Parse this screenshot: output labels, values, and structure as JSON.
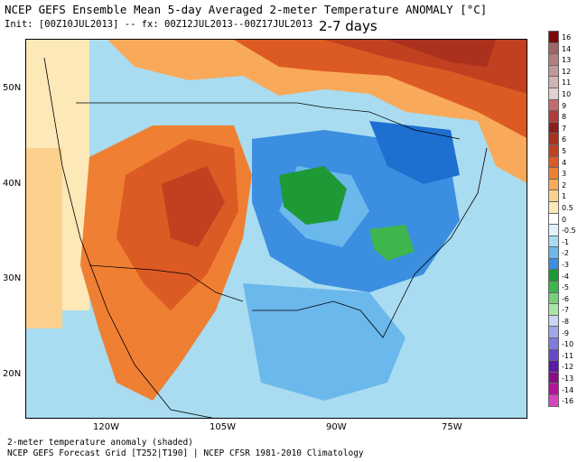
{
  "header": {
    "title": "NCEP GEFS Ensemble Mean 5-day Averaged 2-meter Temperature ANOMALY [°C]",
    "init": "Init: [00Z10JUL2013] -- fx: 00Z12JUL2013--00Z17JUL2013",
    "period": "2-7 days"
  },
  "axes": {
    "lat_labels": [
      "50N",
      "40N",
      "30N",
      "20N"
    ],
    "lon_labels": [
      "120W",
      "105W",
      "90W",
      "75W"
    ]
  },
  "footer": {
    "line1": "2-meter temperature anomaly (shaded)",
    "line2": "NCEP GEFS Forecast Grid [T252|T190] | NCEP CFSR 1981-2010 Climatology"
  },
  "colorbar": {
    "labels": [
      "16",
      "14",
      "13",
      "12",
      "11",
      "10",
      "9",
      "8",
      "7",
      "6",
      "5",
      "4",
      "3",
      "2",
      "1",
      "0.5",
      "0",
      "-0.5",
      "-1",
      "-2",
      "-3",
      "-4",
      "-5",
      "-6",
      "-7",
      "-8",
      "-9",
      "-10",
      "-11",
      "-12",
      "-13",
      "-14",
      "-16"
    ],
    "colors": [
      "#7a0a0a",
      "#a06565",
      "#b07f7f",
      "#c09a9a",
      "#d1b4b4",
      "#e2cfcf",
      "#c56a6a",
      "#b23a3a",
      "#8e1d1d",
      "#a9311e",
      "#c1401f",
      "#dc5a23",
      "#ef7f33",
      "#f8aa5a",
      "#fbd18d",
      "#fde8b8",
      "#ffffff",
      "#dff2fb",
      "#a7dcf2",
      "#6bb8ec",
      "#3b8ee0",
      "#1d9a36",
      "#3fb54e",
      "#79d07c",
      "#a8e4a6",
      "#c8d6f4",
      "#9ea8ea",
      "#7f7be0",
      "#6648c9",
      "#5b1ba6",
      "#8a0f86",
      "#b3149e",
      "#d744c0"
    ]
  }
}
